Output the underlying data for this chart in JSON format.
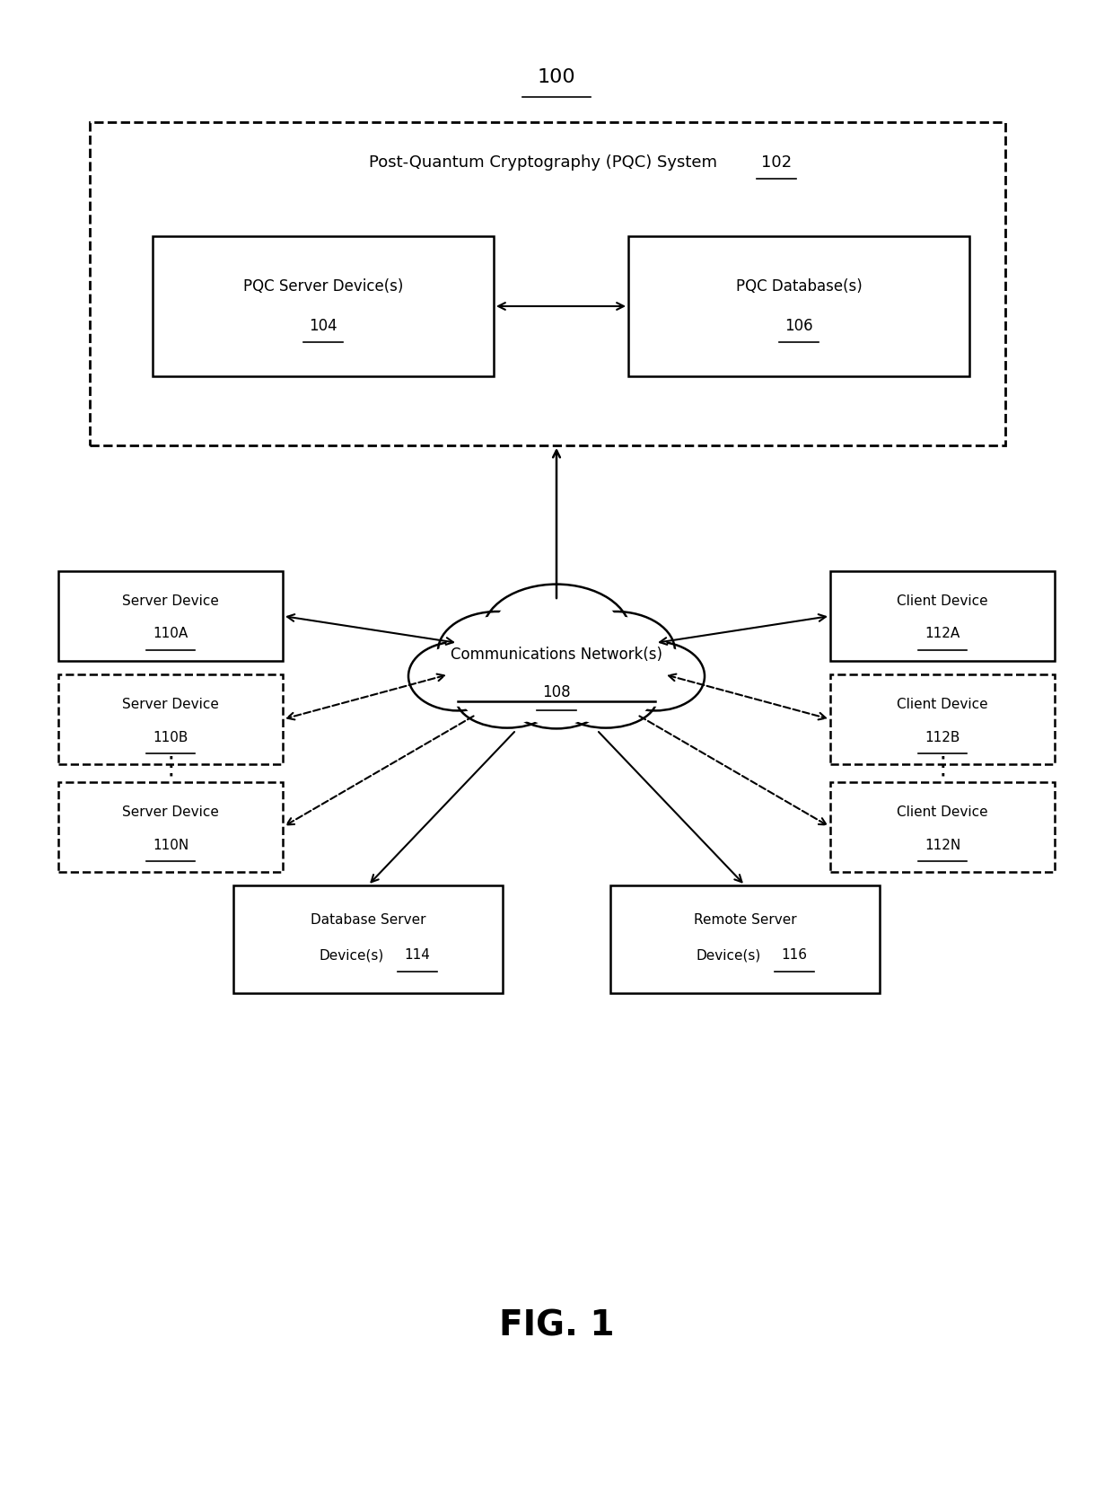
{
  "fig_label": "100",
  "fig_title": "FIG. 1",
  "bg_color": "#ffffff",
  "pqc_system_label": "Post-Quantum Cryptography (PQC) System",
  "pqc_system_num": "102",
  "pqc_server_label": "PQC Server Device(s)",
  "pqc_server_num": "104",
  "pqc_db_label": "PQC Database(s)",
  "pqc_db_num": "106",
  "network_label": "Communications Network(s)",
  "network_num": "108",
  "server_a_label": "Server Device",
  "server_a_num": "110A",
  "server_b_label": "Server Device",
  "server_b_num": "110B",
  "server_n_label": "Server Device",
  "server_n_num": "110N",
  "client_a_label": "Client Device",
  "client_a_num": "112A",
  "client_b_label": "Client Device",
  "client_b_num": "112B",
  "client_n_label": "Client Device",
  "client_n_num": "112N",
  "db_server_line1": "Database Server",
  "db_server_line2": "Device(s)",
  "db_server_num": "114",
  "remote_server_line1": "Remote Server",
  "remote_server_line2": "Device(s)",
  "remote_server_num": "116",
  "fig_w": 12.4,
  "fig_h": 16.76,
  "dpi": 100
}
